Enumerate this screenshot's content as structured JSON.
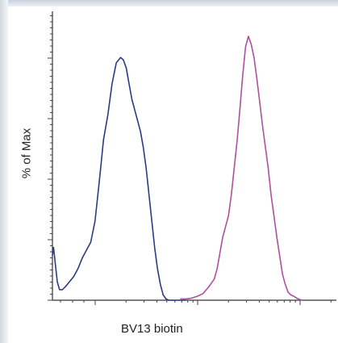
{
  "chart_data": {
    "type": "line",
    "title": "",
    "xlabel": "BV13 biotin",
    "ylabel": "% of Max",
    "xlim": [
      0,
      100
    ],
    "ylim": [
      0,
      100
    ],
    "grid": false,
    "legend": "none",
    "series": [
      {
        "color": "#2c3a86",
        "x": [
          0,
          0.4,
          1,
          1.7,
          2.5,
          3.5,
          4.5,
          6,
          7.5,
          9,
          10.5,
          12,
          13.5,
          15,
          16.5,
          18,
          19.5,
          21,
          22.5,
          24,
          25,
          26,
          27,
          28,
          29,
          30,
          31,
          32,
          33,
          34,
          35,
          36,
          37,
          38,
          39,
          40,
          41,
          42,
          43,
          44,
          45,
          46,
          47
        ],
        "y": [
          17,
          20,
          14,
          7,
          4,
          4,
          5,
          7,
          9,
          12,
          16,
          19,
          22,
          30,
          45,
          61,
          70,
          82,
          90,
          92,
          91,
          88,
          82,
          76,
          72,
          68,
          64,
          58,
          50,
          40,
          30,
          20,
          12,
          6,
          2,
          0.5,
          0,
          0,
          0,
          0,
          0,
          0,
          0
        ]
      },
      {
        "color": "#b04f9c",
        "x": [
          45,
          47,
          49,
          51,
          53,
          55,
          57,
          58,
          59,
          60,
          61,
          62,
          63,
          64,
          65,
          66,
          67,
          68,
          69,
          70,
          71,
          72,
          73,
          74,
          75,
          76,
          77,
          78,
          79,
          80,
          81,
          82,
          83,
          84,
          85,
          86,
          87,
          88
        ],
        "y": [
          0.5,
          0.5,
          0.8,
          1.5,
          2.5,
          5,
          8,
          12,
          18,
          24,
          28,
          32,
          40,
          50,
          60,
          72,
          85,
          96,
          100,
          97,
          92,
          84,
          75,
          66,
          58,
          50,
          40,
          32,
          24,
          17,
          10,
          6,
          3,
          2,
          1.5,
          0.8,
          0.3,
          0
        ]
      }
    ]
  }
}
